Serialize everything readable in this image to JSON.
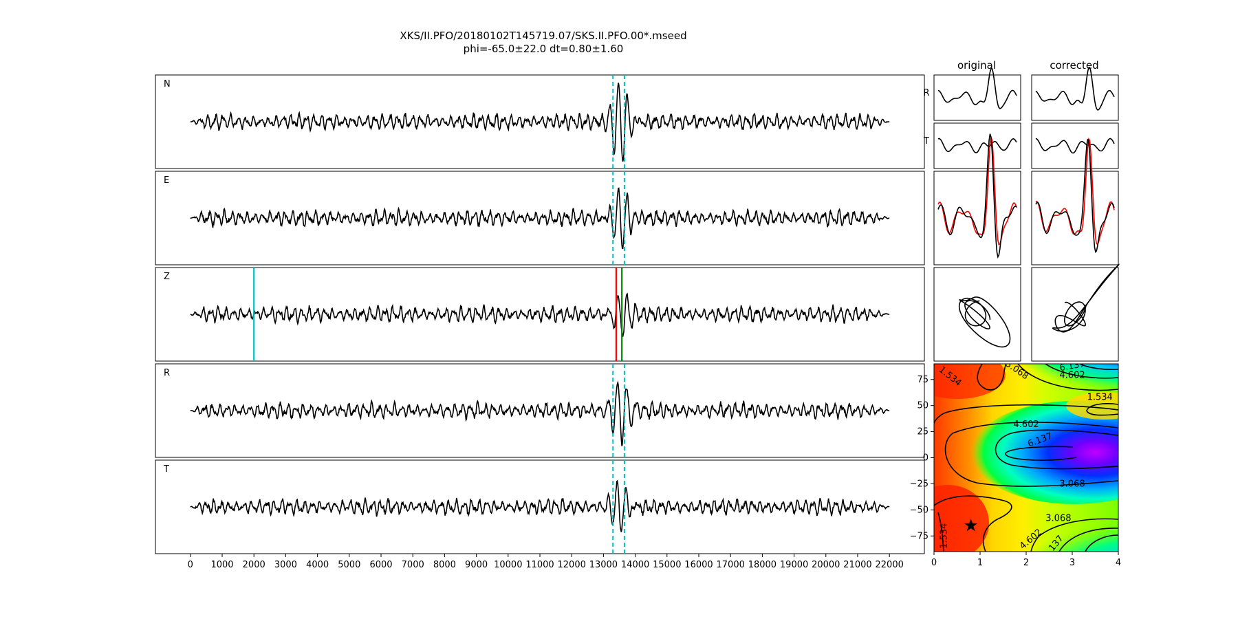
{
  "figure": {
    "title_line1": "XKS/II.PFO/20180102T145719.07/SKS.II.PFO.00*.mseed",
    "title_line2": "phi=-65.0±22.0 dt=0.80±1.60"
  },
  "chart_data": [
    {
      "type": "line",
      "description_kind": "seismogram-stack",
      "traces": [
        {
          "label": "N",
          "amp_max": 1.2,
          "window_picks": [
            13300,
            13660
          ]
        },
        {
          "label": "E",
          "amp_max": 0.85,
          "window_picks": [
            13300,
            13660
          ]
        },
        {
          "label": "Z",
          "amp_max": 0.7,
          "phase_picks": [
            {
              "time": 2000,
              "color": "#00bfbf"
            },
            {
              "time": 13400,
              "color": "#ff0000"
            },
            {
              "time": 13580,
              "color": "#008000"
            }
          ]
        },
        {
          "label": "R",
          "amp_max": 1.1,
          "window_picks": [
            13300,
            13660
          ]
        },
        {
          "label": "T",
          "amp_max": 0.75,
          "window_picks": [
            13300,
            13660
          ]
        }
      ],
      "x_start": 0,
      "x_end": 22000,
      "xlim": [
        -1100,
        23100
      ],
      "xticks": [
        0,
        1000,
        2000,
        3000,
        4000,
        5000,
        6000,
        7000,
        8000,
        9000,
        10000,
        11000,
        12000,
        13000,
        14000,
        15000,
        16000,
        17000,
        18000,
        19000,
        20000,
        21000,
        22000
      ],
      "xtick_labels": [
        "0",
        "1000",
        "2000",
        "3000",
        "4000",
        "5000",
        "6000",
        "7000",
        "8000",
        "9000",
        "10000",
        "11000",
        "12000",
        "13000",
        "14000",
        "15000",
        "16000",
        "17000",
        "18000",
        "19000",
        "20000",
        "21000",
        "22000"
      ],
      "line_color": "#000000",
      "window_color": "#00bfbf"
    },
    {
      "type": "line",
      "description_kind": "window-comparison",
      "column_titles": [
        "original",
        "corrected"
      ],
      "row_labels": [
        "R",
        "T"
      ],
      "trace_colors": [
        "#000000",
        "#ff0000"
      ]
    },
    {
      "type": "heatmap",
      "description_kind": "energy-grid",
      "colormap": "gist_rainbow_r",
      "xlim": [
        0,
        4
      ],
      "ylim": [
        -90,
        90
      ],
      "xticks": [
        0,
        1,
        2,
        3,
        4
      ],
      "yticks": [
        75,
        50,
        25,
        0,
        -25,
        -50,
        -75
      ],
      "xtick_labels": [
        "0",
        "1",
        "2",
        "3",
        "4"
      ],
      "ytick_labels": [
        "75",
        "50",
        "25",
        "0",
        "−25",
        "−50",
        "−75"
      ],
      "contour_levels": [
        1.534,
        3.068,
        4.602,
        6.137
      ],
      "contour_labels": [
        {
          "text": "1.534",
          "x": 0.35,
          "y": 78,
          "rot": 38
        },
        {
          "text": "3.068",
          "x": 1.8,
          "y": 84,
          "rot": 35
        },
        {
          "text": "6.137",
          "x": 3.0,
          "y": 88,
          "rot": -10
        },
        {
          "text": "4.602",
          "x": 3.0,
          "y": 79,
          "rot": 0
        },
        {
          "text": "1.534",
          "x": 3.6,
          "y": 58,
          "rot": 0
        },
        {
          "text": "4.602",
          "x": 2.0,
          "y": 32,
          "rot": 0
        },
        {
          "text": "6.137",
          "x": 2.3,
          "y": 17,
          "rot": -20
        },
        {
          "text": "3.068",
          "x": 3.0,
          "y": -25,
          "rot": 0
        },
        {
          "text": "3.068",
          "x": 2.7,
          "y": -58,
          "rot": 0
        },
        {
          "text": "4.602",
          "x": 2.1,
          "y": -78,
          "rot": -40
        },
        {
          "text": "1.534",
          "x": 0.22,
          "y": -75,
          "rot": -90
        },
        {
          "text": "137",
          "x": 2.65,
          "y": -82,
          "rot": -50
        }
      ],
      "best": {
        "dt": 0.8,
        "phi": -65.0,
        "marker": "star"
      }
    }
  ]
}
